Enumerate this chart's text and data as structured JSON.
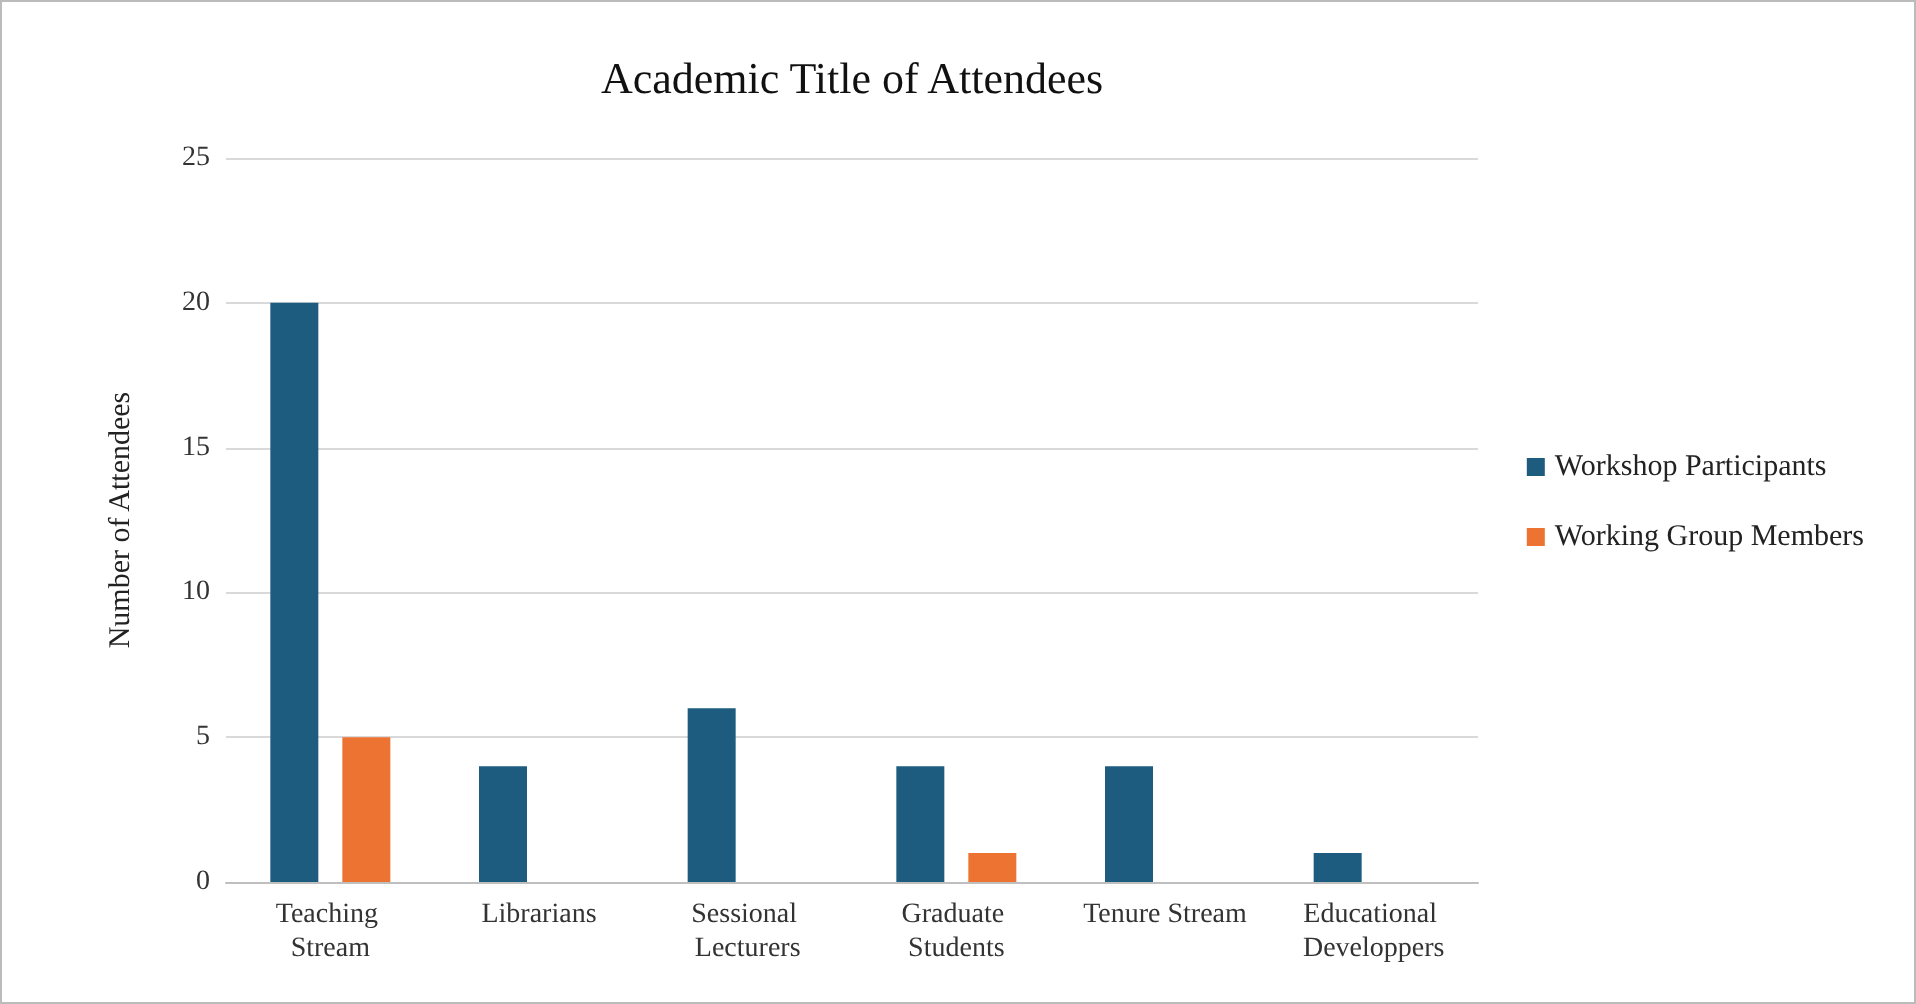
{
  "chart_data": {
    "type": "bar",
    "title": "Academic Title of Attendees",
    "ylabel": "Number of Attendees",
    "categories": [
      "Teaching Stream",
      "Librarians",
      "Sessional Lecturers",
      "Graduate Students",
      "Tenure Stream",
      "Educational Developpers"
    ],
    "series": [
      {
        "name": "Workshop Participants",
        "color": "#1d5c7e",
        "values": [
          20,
          4,
          6,
          4,
          4,
          1
        ]
      },
      {
        "name": "Working Group Members",
        "color": "#ec7331",
        "values": [
          5,
          0,
          0,
          1,
          0,
          0
        ]
      }
    ],
    "ylim": [
      0,
      25
    ],
    "yticks": [
      0,
      5,
      10,
      15,
      20,
      25
    ],
    "grid": "y",
    "legend": "right"
  }
}
